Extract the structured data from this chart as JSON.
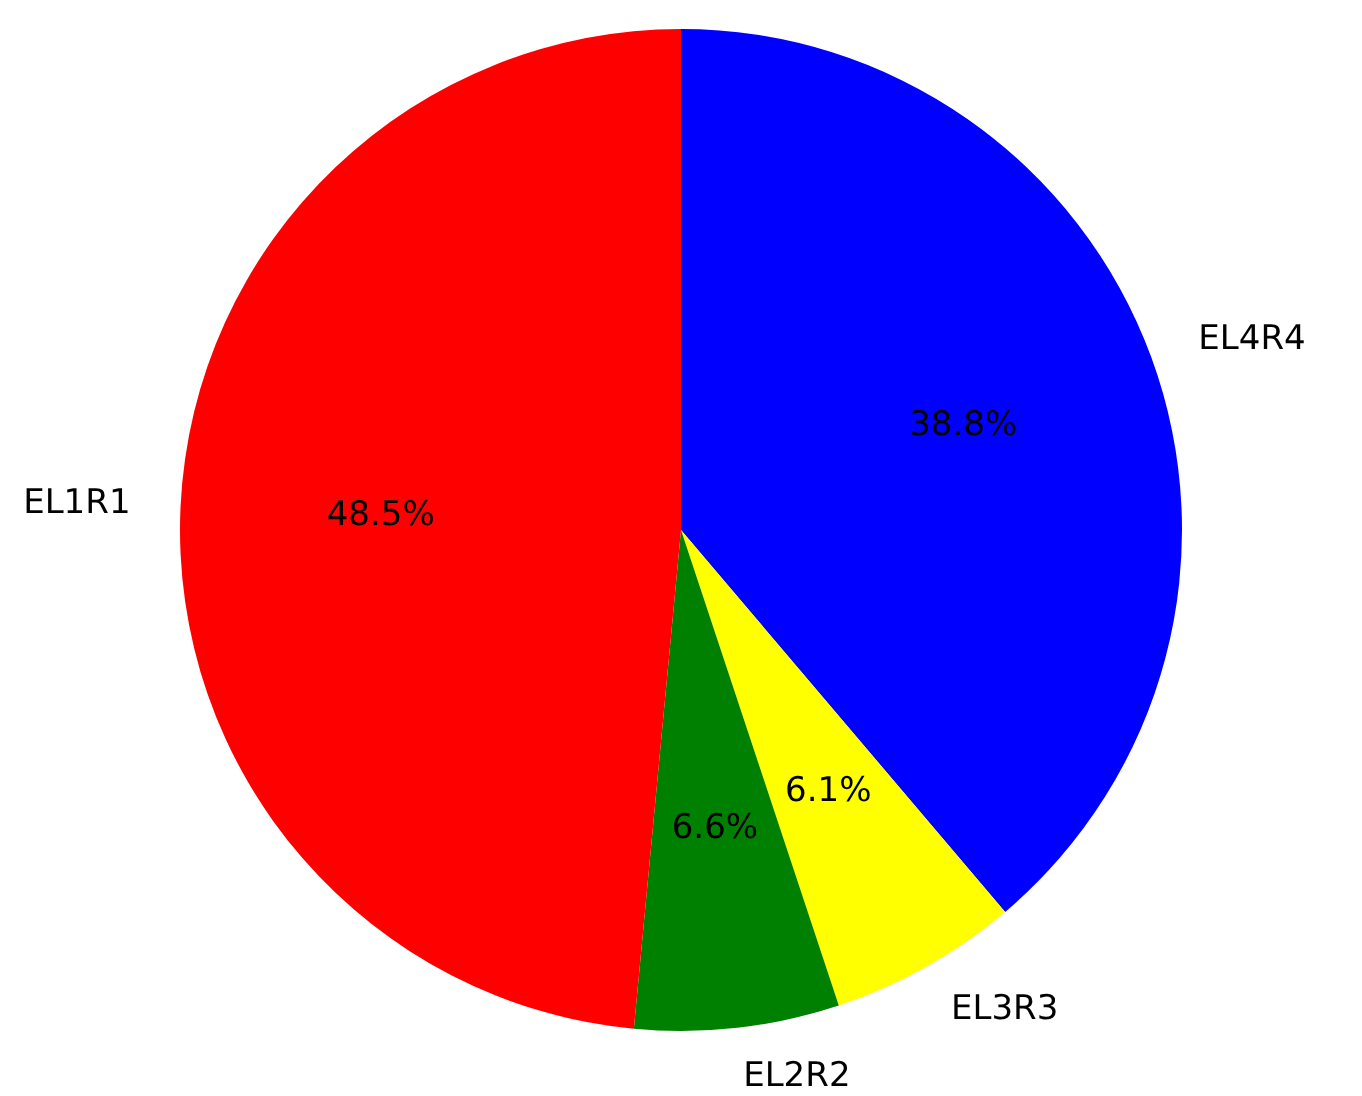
{
  "chart_data": {
    "type": "pie",
    "categories": [
      "EL4R4",
      "EL3R3",
      "EL2R2",
      "EL1R1"
    ],
    "values": [
      38.8,
      6.1,
      6.6,
      48.5
    ],
    "colors": [
      "#0000ff",
      "#ffff00",
      "#008000",
      "#ff0000"
    ],
    "value_labels": [
      "38.8%",
      "6.1%",
      "6.6%",
      "48.5%"
    ],
    "legend": false
  }
}
